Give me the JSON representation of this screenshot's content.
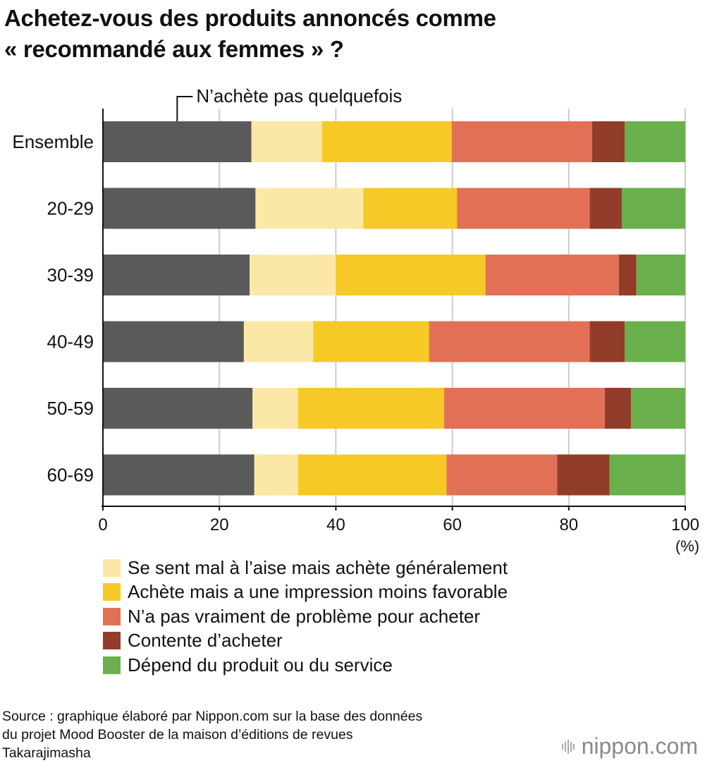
{
  "title": {
    "line1": "Achetez-vous des produits annoncés comme",
    "line2": "« recommandé aux femmes » ?"
  },
  "chart_data": {
    "type": "bar",
    "orientation": "horizontal",
    "stacked": true,
    "title": "Achetez-vous des produits annoncés comme « recommandé aux femmes » ?",
    "categories": [
      "Ensemble",
      "20-29",
      "30-39",
      "40-49",
      "50-59",
      "60-69"
    ],
    "series": [
      {
        "name": "N’achète pas quelquefois",
        "color": "#5a5a5a",
        "values": [
          25.5,
          26.2,
          25.2,
          24.2,
          25.7,
          26.0
        ]
      },
      {
        "name": "Se sent mal à l’aise mais achète généralement",
        "color": "#fbe8a6",
        "values": [
          12.1,
          18.5,
          14.8,
          11.9,
          7.8,
          7.5
        ]
      },
      {
        "name": "Achète mais a une impression moins favorable",
        "color": "#f7c926",
        "values": [
          22.3,
          16.1,
          25.7,
          19.9,
          25.1,
          25.5
        ]
      },
      {
        "name": "N’a pas vraiment de problème pour acheter",
        "color": "#e27057",
        "values": [
          24.1,
          22.8,
          22.9,
          27.6,
          27.6,
          19.0
        ]
      },
      {
        "name": "Contente d’acheter",
        "color": "#923c2a",
        "values": [
          5.6,
          5.5,
          3.0,
          6.0,
          4.5,
          9.0
        ]
      },
      {
        "name": "Dépend du produit ou du service",
        "color": "#6ab04c",
        "values": [
          10.4,
          10.9,
          8.4,
          10.4,
          9.3,
          13.0
        ]
      }
    ],
    "annotation": "N’achète pas quelquefois",
    "xlim": [
      0,
      100
    ],
    "xticks": [
      0,
      20,
      40,
      60,
      80,
      100
    ],
    "xunit": "(%)",
    "grid": true,
    "legend_position": "bottom"
  },
  "legend": [
    {
      "label": "Se sent mal à l’aise mais achète généralement",
      "color": "#fbe8a6"
    },
    {
      "label": "Achète mais a une impression moins favorable",
      "color": "#f7c926"
    },
    {
      "label": "N’a pas vraiment de problème pour acheter",
      "color": "#e27057"
    },
    {
      "label": "Contente d’acheter",
      "color": "#923c2a"
    },
    {
      "label": "Dépend du produit ou du service",
      "color": "#6ab04c"
    }
  ],
  "source": {
    "line1": "Source : graphique élaboré par Nippon.com sur la base des données",
    "line2": "du projet Mood Booster de la maison d’éditions de revues",
    "line3": "Takarajimasha"
  },
  "logo": {
    "part1": "nippon",
    "part2": ".com"
  }
}
